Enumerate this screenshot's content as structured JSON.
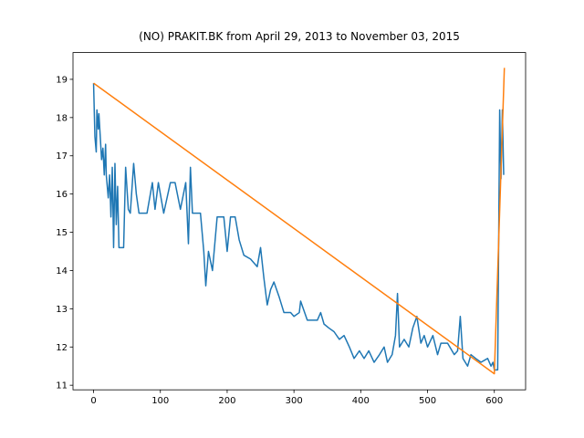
{
  "chart_data": {
    "type": "line",
    "title": "(NO) PRAKIT.BK from April 29, 2013 to November 03, 2015",
    "xlim": [
      -30.8,
      646.8
    ],
    "ylim": [
      10.88,
      19.7
    ],
    "xticks": [
      0,
      100,
      200,
      300,
      400,
      500,
      600
    ],
    "yticks": [
      11,
      12,
      13,
      14,
      15,
      16,
      17,
      18,
      19
    ],
    "series": [
      {
        "color": "#1f77b4",
        "x": [
          0,
          2,
          4,
          5,
          7,
          8,
          10,
          12,
          14,
          16,
          18,
          19,
          22,
          24,
          26,
          28,
          30,
          32,
          34,
          36,
          38,
          45,
          48,
          52,
          55,
          60,
          64,
          68,
          80,
          88,
          92,
          97,
          105,
          115,
          122,
          130,
          138,
          140,
          142,
          145,
          148,
          160,
          165,
          168,
          172,
          178,
          185,
          195,
          200,
          205,
          212,
          218,
          225,
          235,
          245,
          250,
          255,
          260,
          265,
          270,
          278,
          285,
          295,
          300,
          308,
          310,
          320,
          335,
          340,
          345,
          352,
          360,
          368,
          375,
          383,
          390,
          398,
          405,
          412,
          420,
          428,
          435,
          440,
          447,
          452,
          455,
          458,
          465,
          472,
          478,
          484,
          490,
          495,
          500,
          508,
          515,
          520,
          530,
          540,
          545,
          549,
          553,
          560,
          565,
          572,
          580,
          590,
          595,
          598,
          600,
          605,
          608,
          610,
          612,
          614
        ],
        "values": [
          18.9,
          17.5,
          17.1,
          18.2,
          17.7,
          18.1,
          17.5,
          16.9,
          17.2,
          16.5,
          17.3,
          16.5,
          15.9,
          16.5,
          15.4,
          16.7,
          14.6,
          16.8,
          15.2,
          16.2,
          14.6,
          14.6,
          16.7,
          15.6,
          15.5,
          16.8,
          16.0,
          15.5,
          15.5,
          16.3,
          15.6,
          16.3,
          15.5,
          16.3,
          16.3,
          15.6,
          16.3,
          15.5,
          14.7,
          16.7,
          15.5,
          15.5,
          14.5,
          13.6,
          14.5,
          14.0,
          15.4,
          15.4,
          14.5,
          15.4,
          15.4,
          14.8,
          14.4,
          14.3,
          14.1,
          14.6,
          13.8,
          13.1,
          13.5,
          13.7,
          13.3,
          12.9,
          12.9,
          12.8,
          12.9,
          13.2,
          12.7,
          12.7,
          12.9,
          12.6,
          12.5,
          12.4,
          12.2,
          12.3,
          12.0,
          11.7,
          11.9,
          11.7,
          11.9,
          11.6,
          11.8,
          12.0,
          11.6,
          11.8,
          12.3,
          13.4,
          12.0,
          12.2,
          12.0,
          12.5,
          12.8,
          12.1,
          12.3,
          12.0,
          12.3,
          11.8,
          12.1,
          12.1,
          11.8,
          11.9,
          12.8,
          11.7,
          11.5,
          11.8,
          11.7,
          11.6,
          11.7,
          11.5,
          11.6,
          11.4,
          11.4,
          18.2,
          16.4,
          18.2,
          16.5
        ]
      },
      {
        "color": "#ff7f0e",
        "x": [
          0,
          600,
          615
        ],
        "values": [
          18.9,
          11.3,
          19.3
        ]
      }
    ]
  }
}
